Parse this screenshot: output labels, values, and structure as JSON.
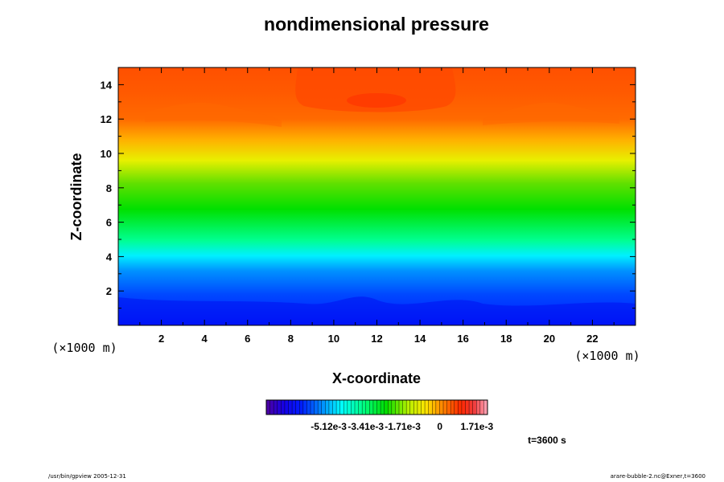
{
  "chart_data": {
    "type": "heatmap",
    "title": "nondimensional pressure",
    "xlabel": "X-coordinate",
    "ylabel": "Z-coordinate",
    "x_unit": "(×1000 m)",
    "y_unit": "(×1000 m)",
    "xlim": [
      0,
      24
    ],
    "ylim": [
      0,
      15
    ],
    "x_ticks": [
      2,
      4,
      6,
      8,
      10,
      12,
      14,
      16,
      18,
      20,
      22
    ],
    "y_ticks": [
      2,
      4,
      6,
      8,
      10,
      12,
      14
    ],
    "colorbar": {
      "range": [
        -0.008,
        0.0022
      ],
      "tick_values": [
        -0.00512,
        -0.00341,
        -0.00171,
        0,
        0.00171
      ],
      "tick_labels": [
        "-5.12e-3",
        "-3.41e-3",
        "-1.71e-3",
        "0",
        "1.71e-3"
      ]
    },
    "time_label": "t=3600 s",
    "colors": {
      "low": "#0000ff",
      "mid": "#00ff00",
      "high": "#ff3c00"
    }
  },
  "footer": {
    "left": "/usr/bin/gpview 2005-12-31",
    "right": "arare-bubble-2.nc@Exner,t=3600"
  }
}
